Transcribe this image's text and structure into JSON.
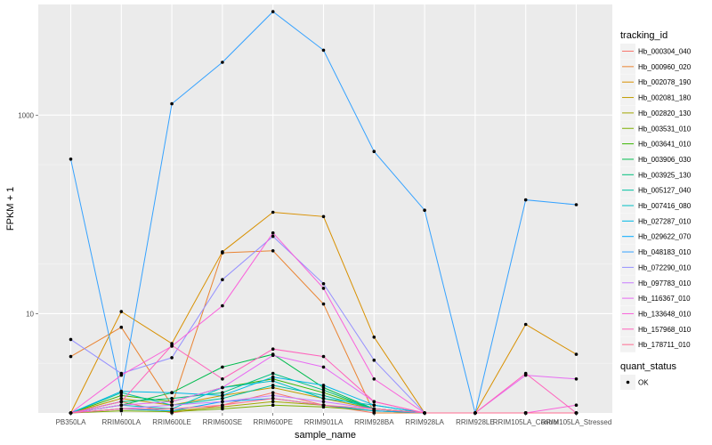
{
  "chart_data": {
    "type": "line",
    "xlabel": "sample_name",
    "ylabel": "FPKM + 1",
    "y_scale": "log10",
    "ylim": [
      1,
      13000
    ],
    "y_ticks": [
      10,
      1000
    ],
    "y_tick_labels": [
      "10",
      "1000"
    ],
    "grid": true,
    "legend_placement": "right",
    "categories": [
      "PB350LA",
      "RRIM600LA",
      "RRIM600LE",
      "RRIM600SE",
      "RRIM600PE",
      "RRIM901LA",
      "RRIM928BA",
      "RRIM928LA",
      "RRIM928LE",
      "RRIM105LA_Control",
      "RRIM105LA_Stressed"
    ],
    "color_legend_title": "tracking_id",
    "shape_legend_title": "quant_status",
    "shape_legend_label": "OK",
    "series": [
      {
        "name": "Hb_000304_040",
        "color": "#F8766D",
        "values": [
          1,
          1.3,
          1,
          1.2,
          1.6,
          1.2,
          1,
          1,
          1,
          1,
          1
        ]
      },
      {
        "name": "Hb_000960_020",
        "color": "#EA8331",
        "values": [
          3.7,
          7.3,
          1.2,
          41,
          43,
          12.5,
          1,
          1,
          1,
          1,
          1
        ]
      },
      {
        "name": "Hb_002078_190",
        "color": "#D89000",
        "values": [
          1,
          10.5,
          5,
          42,
          105,
          95,
          5.8,
          1,
          1,
          7.8,
          3.9
        ]
      },
      {
        "name": "Hb_002081_180",
        "color": "#C09B00",
        "values": [
          1,
          1.4,
          1.2,
          1.5,
          1.8,
          1.4,
          1.1,
          1,
          1,
          1,
          1
        ]
      },
      {
        "name": "Hb_002820_130",
        "color": "#A3A500",
        "values": [
          1,
          1.1,
          1.05,
          1.15,
          1.3,
          1.2,
          1.05,
          1,
          1,
          1,
          1
        ]
      },
      {
        "name": "Hb_003531_010",
        "color": "#7CAE00",
        "values": [
          1,
          1.05,
          1.03,
          1.1,
          1.2,
          1.15,
          1.05,
          1,
          1,
          1,
          1
        ]
      },
      {
        "name": "Hb_003641_010",
        "color": "#39B600",
        "values": [
          1,
          1.5,
          1.3,
          1.8,
          2.2,
          1.6,
          1.1,
          1,
          1,
          1,
          1
        ]
      },
      {
        "name": "Hb_003906_030",
        "color": "#00BB4E",
        "values": [
          1,
          1.2,
          1.6,
          2.9,
          3.9,
          1.8,
          1.1,
          1,
          1,
          1,
          1
        ]
      },
      {
        "name": "Hb_003925_130",
        "color": "#00BF7D",
        "values": [
          1,
          1.3,
          1.4,
          1.6,
          2.5,
          1.7,
          1.1,
          1,
          1,
          1,
          1
        ]
      },
      {
        "name": "Hb_005127_040",
        "color": "#00C1A3",
        "values": [
          1,
          1.6,
          1.2,
          1.4,
          1.9,
          1.5,
          1.1,
          1,
          1,
          1,
          1
        ]
      },
      {
        "name": "Hb_007416_080",
        "color": "#00BFC4",
        "values": [
          1,
          1.2,
          1.1,
          1.8,
          2.1,
          1.4,
          1.2,
          1,
          1,
          1,
          1
        ]
      },
      {
        "name": "Hb_027287_010",
        "color": "#00B8E5",
        "values": [
          1,
          1.65,
          1.6,
          1.5,
          2.3,
          1.9,
          1.2,
          1,
          1,
          1,
          1
        ]
      },
      {
        "name": "Hb_029622_070",
        "color": "#00A9FF",
        "values": [
          1,
          1.1,
          1.05,
          1.3,
          1.4,
          1.2,
          1.05,
          1,
          1,
          1,
          1
        ]
      },
      {
        "name": "Hb_048183_010",
        "color": "#35A2FF",
        "values": [
          360,
          1.6,
          1300,
          3400,
          11000,
          4500,
          430,
          110,
          1,
          140,
          125
        ]
      },
      {
        "name": "Hb_072290_010",
        "color": "#9590FF",
        "values": [
          5.5,
          2.5,
          3.6,
          22,
          60,
          20,
          3.4,
          1,
          1,
          1,
          1
        ]
      },
      {
        "name": "Hb_097783_010",
        "color": "#C77CFF",
        "values": [
          1,
          1.1,
          1.2,
          1.3,
          1.5,
          1.3,
          1.1,
          1,
          1,
          1,
          1
        ]
      },
      {
        "name": "Hb_116367_010",
        "color": "#E76BF3",
        "values": [
          1,
          1.2,
          1.3,
          1.8,
          3.8,
          2.9,
          1.3,
          1,
          1,
          2.4,
          2.2
        ]
      },
      {
        "name": "Hb_133648_010",
        "color": "#FA62DB",
        "values": [
          1,
          2.4,
          4.7,
          12,
          65,
          18,
          2.2,
          1,
          1,
          1,
          1.2
        ]
      },
      {
        "name": "Hb_157968_010",
        "color": "#FF62BC",
        "values": [
          1,
          1.3,
          4.8,
          2.2,
          4.4,
          3.7,
          1.3,
          1,
          1,
          2.5,
          1
        ]
      },
      {
        "name": "Hb_178711_010",
        "color": "#FF6C91",
        "values": [
          1,
          1.1,
          1.1,
          1.2,
          1.4,
          1.2,
          1.1,
          1,
          1,
          1,
          1
        ]
      }
    ]
  }
}
